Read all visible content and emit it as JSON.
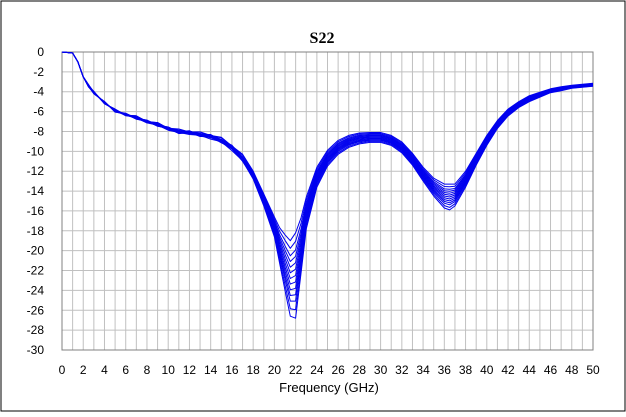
{
  "chart_data": {
    "type": "line",
    "title": "S22",
    "xlabel": "Frequency (GHz)",
    "ylabel": "",
    "xlim": [
      0,
      50
    ],
    "ylim": [
      -30,
      0
    ],
    "x_ticks": [
      0,
      2,
      4,
      6,
      8,
      10,
      12,
      14,
      16,
      18,
      20,
      22,
      24,
      26,
      28,
      30,
      32,
      34,
      36,
      38,
      40,
      42,
      44,
      46,
      48,
      50
    ],
    "y_ticks": [
      0,
      -2,
      -4,
      -6,
      -8,
      -10,
      -12,
      -14,
      -16,
      -18,
      -20,
      -22,
      -24,
      -26,
      -28,
      -30
    ],
    "grid": true,
    "legend": "none",
    "line_color": "#0000ee",
    "grid_color": "#c0c0c0",
    "x": [
      0,
      1,
      1.5,
      2,
      2.5,
      3,
      4,
      5,
      6,
      7,
      8,
      9,
      10,
      11,
      12,
      13,
      14,
      15,
      16,
      17,
      18,
      19,
      20,
      20.5,
      21,
      21.5,
      22,
      22.5,
      23,
      24,
      25,
      26,
      27,
      28,
      29,
      30,
      31,
      32,
      33,
      34,
      35,
      36,
      36.5,
      37,
      38,
      39,
      40,
      41,
      42,
      43,
      44,
      45,
      46,
      47,
      48,
      49,
      50
    ],
    "base_curve": [
      0,
      -0.1,
      -1,
      -2.5,
      -3.4,
      -4.1,
      -5.1,
      -5.9,
      -6.3,
      -6.6,
      -7.0,
      -7.3,
      -7.7,
      -8.0,
      -8.1,
      -8.3,
      -8.5,
      -8.9,
      -9.6,
      -10.7,
      -12.4,
      -14.9,
      -17.6,
      -19.5,
      -21.2,
      -22.8,
      -22.5,
      -19.5,
      -16.2,
      -12.6,
      -10.7,
      -9.6,
      -9.0,
      -8.7,
      -8.6,
      -8.6,
      -8.9,
      -9.6,
      -10.8,
      -12.3,
      -13.6,
      -14.5,
      -14.6,
      -14.4,
      -12.8,
      -10.8,
      -8.9,
      -7.3,
      -6.1,
      -5.3,
      -4.7,
      -4.3,
      -3.9,
      -3.7,
      -3.5,
      -3.4,
      -3.3
    ],
    "spread": [
      0,
      0,
      0,
      0,
      0,
      0,
      0,
      0.05,
      0.05,
      0.08,
      0.1,
      0.1,
      0.12,
      0.15,
      0.15,
      0.15,
      0.2,
      0.2,
      0.25,
      0.3,
      0.4,
      0.6,
      1.0,
      1.8,
      2.8,
      3.8,
      4.3,
      2.8,
      1.6,
      1.0,
      0.8,
      0.7,
      0.6,
      0.55,
      0.5,
      0.5,
      0.5,
      0.55,
      0.6,
      0.7,
      0.9,
      1.2,
      1.3,
      1.1,
      0.8,
      0.6,
      0.5,
      0.4,
      0.35,
      0.3,
      0.3,
      0.25,
      0.2,
      0.2,
      0.15,
      0.15,
      0.15
    ],
    "series_offsets": [
      -1,
      -0.8,
      -0.6,
      -0.45,
      -0.3,
      -0.15,
      0,
      0.15,
      0.3,
      0.45,
      0.6,
      0.8,
      1
    ]
  }
}
